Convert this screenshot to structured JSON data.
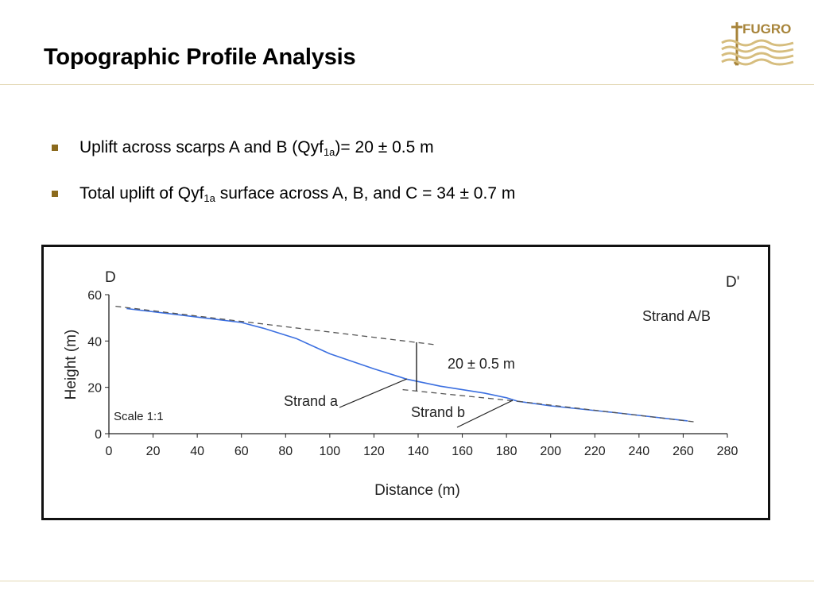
{
  "slide": {
    "title": "Topographic Profile Analysis",
    "logo_text": "FUGRO",
    "bullets": [
      {
        "pre": "Uplift across scarps A and B (Qyf",
        "sub": "1a",
        "post": ")= 20 ± 0.5 m"
      },
      {
        "pre": "Total uplift of Qyf",
        "sub": "1a",
        "post": " surface across A, B, and C = 34 ± 0.7 m"
      }
    ]
  },
  "colors": {
    "accent_rule": "#e3d7b4",
    "bullet": "#8b6a1d",
    "logo": "#a7843a",
    "profile_line": "#3b6fe0",
    "dashed_line": "#555555"
  },
  "chart_data": {
    "type": "line",
    "xlabel": "Distance (m)",
    "ylabel": "Height (m)",
    "xlim": [
      0,
      280
    ],
    "ylim": [
      0,
      60
    ],
    "xticks": [
      0,
      20,
      40,
      60,
      80,
      100,
      120,
      140,
      160,
      180,
      200,
      220,
      240,
      260,
      280
    ],
    "yticks": [
      0,
      20,
      40,
      60
    ],
    "grid": false,
    "series": [
      {
        "style": "solid",
        "color": "#3b6fe0",
        "x": [
          8,
          30,
          60,
          70,
          85,
          100,
          120,
          135,
          150,
          170,
          180,
          185,
          200,
          230,
          262
        ],
        "y": [
          54,
          51.5,
          48,
          45.5,
          41,
          34.5,
          28,
          23.5,
          20.5,
          17.5,
          15.5,
          14,
          12,
          9,
          5.5
        ]
      },
      {
        "style": "dashed",
        "color": "#555555",
        "x": [
          3,
          147
        ],
        "y": [
          55,
          38.5
        ]
      },
      {
        "style": "dashed",
        "color": "#555555",
        "x": [
          133,
          185
        ],
        "y": [
          19,
          14
        ]
      },
      {
        "style": "dashed",
        "color": "#555555",
        "x": [
          185,
          266
        ],
        "y": [
          14,
          5
        ]
      }
    ],
    "annotations": {
      "left_end": "D",
      "right_end": "D'",
      "legend_label": "Strand A/B",
      "measure": "20 ± 0.5 m",
      "strand_a": "Strand a",
      "strand_b": "Strand b",
      "scale": "Scale 1:1"
    }
  }
}
